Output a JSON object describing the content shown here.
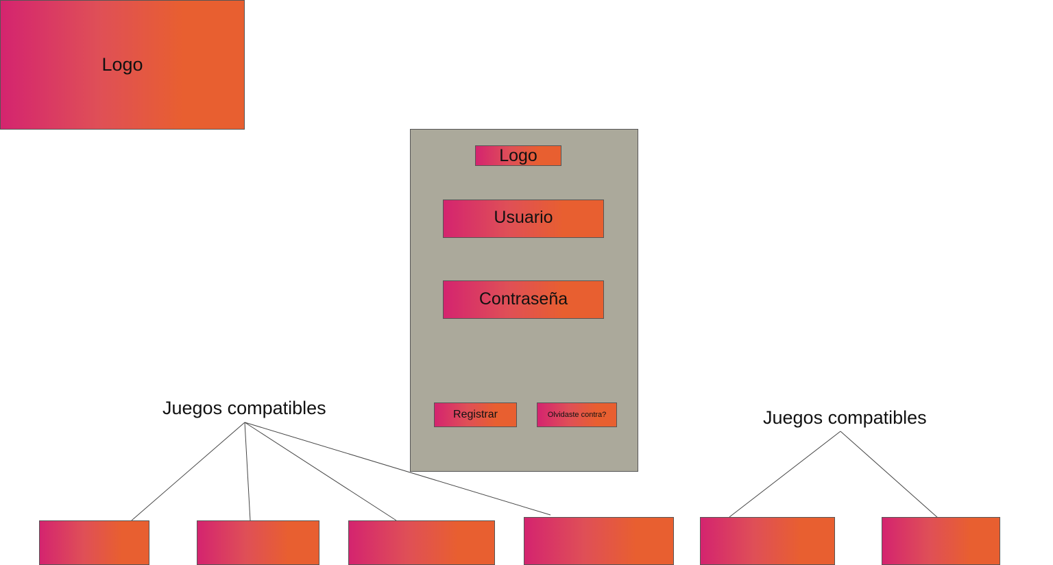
{
  "colors": {
    "gradient_start": "#d4246f",
    "gradient_end": "#e85f30",
    "panel": "#aba99b",
    "outline": "#555555"
  },
  "logo_large": "Logo",
  "login": {
    "logo": "Logo",
    "user_field": "Usuario",
    "password_field": "Contraseña",
    "register_button": "Registrar",
    "forgot_button": "Olvidaste contra?"
  },
  "compatible_left": {
    "label": "Juegos compatibles",
    "boxes": [
      "",
      "",
      "",
      ""
    ]
  },
  "compatible_right": {
    "label": "Juegos compatibles",
    "boxes": [
      "",
      ""
    ]
  }
}
